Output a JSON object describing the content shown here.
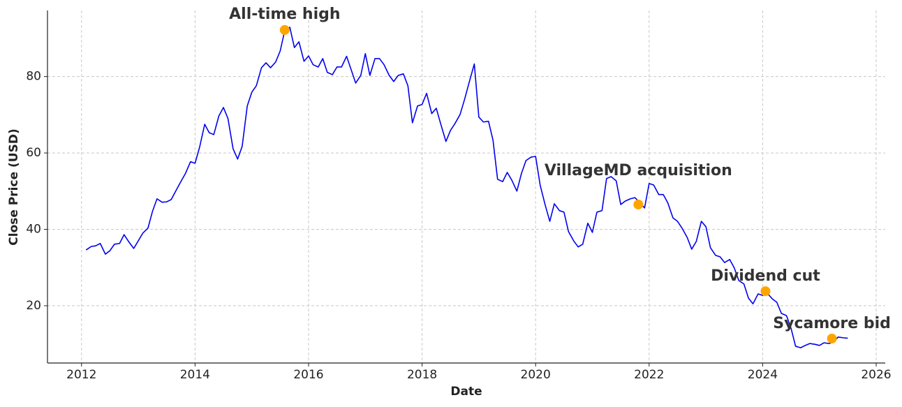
{
  "chart_data": {
    "type": "line",
    "xlabel": "Date",
    "ylabel": "Close Price (USD)",
    "xlim": [
      2011.4,
      2026.16
    ],
    "ylim": [
      5,
      97.3
    ],
    "xticks": [
      2012,
      2014,
      2016,
      2018,
      2020,
      2022,
      2024,
      2026
    ],
    "yticks": [
      20,
      40,
      60,
      80
    ],
    "grid": true,
    "x": [
      2012.08,
      2012.17,
      2012.25,
      2012.33,
      2012.42,
      2012.5,
      2012.58,
      2012.67,
      2012.75,
      2012.83,
      2012.92,
      2013.0,
      2013.08,
      2013.17,
      2013.25,
      2013.33,
      2013.42,
      2013.5,
      2013.58,
      2013.67,
      2013.75,
      2013.83,
      2013.92,
      2014.0,
      2014.08,
      2014.17,
      2014.25,
      2014.33,
      2014.42,
      2014.5,
      2014.58,
      2014.67,
      2014.75,
      2014.83,
      2014.92,
      2015.0,
      2015.08,
      2015.17,
      2015.25,
      2015.33,
      2015.42,
      2015.5,
      2015.58,
      2015.67,
      2015.75,
      2015.83,
      2015.92,
      2016.0,
      2016.08,
      2016.17,
      2016.25,
      2016.33,
      2016.42,
      2016.5,
      2016.58,
      2016.67,
      2016.75,
      2016.83,
      2016.92,
      2017.0,
      2017.08,
      2017.17,
      2017.25,
      2017.33,
      2017.42,
      2017.5,
      2017.58,
      2017.67,
      2017.75,
      2017.83,
      2017.92,
      2018.0,
      2018.08,
      2018.17,
      2018.25,
      2018.33,
      2018.42,
      2018.5,
      2018.58,
      2018.67,
      2018.75,
      2018.83,
      2018.92,
      2019.0,
      2019.08,
      2019.17,
      2019.25,
      2019.33,
      2019.42,
      2019.5,
      2019.58,
      2019.67,
      2019.75,
      2019.83,
      2019.92,
      2020.0,
      2020.08,
      2020.17,
      2020.25,
      2020.33,
      2020.42,
      2020.5,
      2020.58,
      2020.67,
      2020.75,
      2020.83,
      2020.92,
      2021.0,
      2021.08,
      2021.17,
      2021.25,
      2021.33,
      2021.42,
      2021.5,
      2021.58,
      2021.67,
      2021.75,
      2021.83,
      2021.92,
      2022.0,
      2022.08,
      2022.17,
      2022.25,
      2022.33,
      2022.42,
      2022.5,
      2022.58,
      2022.67,
      2022.75,
      2022.83,
      2022.92,
      2023.0,
      2023.08,
      2023.17,
      2023.25,
      2023.33,
      2023.42,
      2023.5,
      2023.58,
      2023.67,
      2023.75,
      2023.83,
      2023.92,
      2024.0,
      2024.08,
      2024.17,
      2024.25,
      2024.33,
      2024.42,
      2024.5,
      2024.58,
      2024.67,
      2024.75,
      2024.83,
      2024.92,
      2025.0,
      2025.08,
      2025.17,
      2025.25,
      2025.33,
      2025.42,
      2025.5
    ],
    "series": [
      {
        "name": "Close",
        "color": "#0000ee",
        "values": [
          34.6,
          35.5,
          35.7,
          36.3,
          33.5,
          34.4,
          36.1,
          36.3,
          38.6,
          36.8,
          35.0,
          37.0,
          39.0,
          40.3,
          44.7,
          48.0,
          47.1,
          47.2,
          47.8,
          50.3,
          52.5,
          54.6,
          57.7,
          57.3,
          61.5,
          67.5,
          65.3,
          64.8,
          69.7,
          71.9,
          69.0,
          61.1,
          58.4,
          61.7,
          72.3,
          75.9,
          77.6,
          82.3,
          83.6,
          82.3,
          83.8,
          86.7,
          92.0,
          92.9,
          87.6,
          89.1,
          84.0,
          85.4,
          83.1,
          82.5,
          84.7,
          81.1,
          80.5,
          82.5,
          82.5,
          85.3,
          81.8,
          78.3,
          80.3,
          86.0,
          80.3,
          84.7,
          84.7,
          83.1,
          80.3,
          78.7,
          80.3,
          80.7,
          77.6,
          67.9,
          72.3,
          72.7,
          75.6,
          70.3,
          71.7,
          67.5,
          63.0,
          65.9,
          67.7,
          70.1,
          74.1,
          78.5,
          83.3,
          69.4,
          68.1,
          68.3,
          63.3,
          53.1,
          52.5,
          54.9,
          52.9,
          50.0,
          54.6,
          58.0,
          58.9,
          59.1,
          51.6,
          46.3,
          42.1,
          46.7,
          44.9,
          44.5,
          39.4,
          37.0,
          35.4,
          36.1,
          41.6,
          39.2,
          44.5,
          44.9,
          53.3,
          53.8,
          52.7,
          46.5,
          47.4,
          48.0,
          48.3,
          47.1,
          45.6,
          52.0,
          51.6,
          49.1,
          49.1,
          46.9,
          43.0,
          42.1,
          40.3,
          37.9,
          34.8,
          36.8,
          42.1,
          40.7,
          35.2,
          33.2,
          32.8,
          31.3,
          32.1,
          29.9,
          26.6,
          25.7,
          22.0,
          20.5,
          23.1,
          22.7,
          23.3,
          21.8,
          20.9,
          18.0,
          17.4,
          14.1,
          9.4,
          9.0,
          9.6,
          10.1,
          9.9,
          9.6,
          10.3,
          10.1,
          10.5,
          11.8,
          11.6,
          11.5
        ]
      }
    ],
    "annotations": [
      {
        "text": "All-time high",
        "x": 2015.58,
        "y": 92.2,
        "color": "#ffa500"
      },
      {
        "text": "VillageMD acquisition",
        "x": 2021.81,
        "y": 46.5,
        "color": "#ffa500"
      },
      {
        "text": "Dividend cut",
        "x": 2024.05,
        "y": 23.8,
        "color": "#ffa500"
      },
      {
        "text": "Sycamore bid",
        "x": 2025.22,
        "y": 11.4,
        "color": "#ffa500"
      }
    ]
  }
}
